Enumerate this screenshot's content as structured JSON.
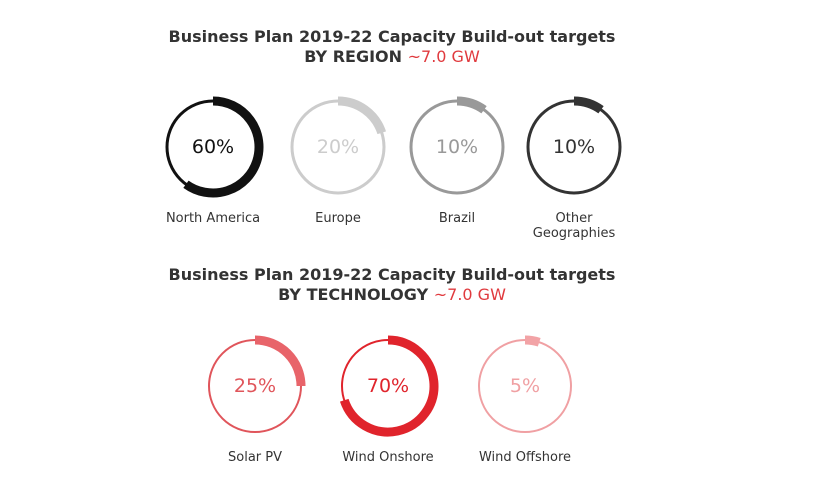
{
  "colors": {
    "background": "#ffffff",
    "accent": "#e03a3e",
    "title": "#333333"
  },
  "chart_data": [
    {
      "type": "pie",
      "title": "Business Plan 2019-22 Capacity Build-out targets",
      "subtitle": "BY REGION",
      "total": "~7.0 GW",
      "categories": [
        "North America",
        "Europe",
        "Brazil",
        "Other Geographies"
      ],
      "values": [
        60,
        20,
        10,
        10
      ],
      "value_labels": [
        "60%",
        "20%",
        "10%",
        "10%"
      ],
      "colors": [
        "#111111",
        "#cccccc",
        "#999999",
        "#333333"
      ],
      "ring_colors": [
        "#111111",
        "#cccccc",
        "#999999",
        "#333333"
      ],
      "text_colors": [
        "#111111",
        "#cccccc",
        "#999999",
        "#333333"
      ]
    },
    {
      "type": "pie",
      "title": "Business Plan 2019-22 Capacity Build-out targets",
      "subtitle": "BY TECHNOLOGY",
      "total": "~7.0 GW",
      "categories": [
        "Solar PV",
        "Wind Onshore",
        "Wind Offshore"
      ],
      "values": [
        25,
        70,
        5
      ],
      "value_labels": [
        "25%",
        "70%",
        "5%"
      ],
      "colors": [
        "#e8646a",
        "#e0242c",
        "#f2a3a6"
      ],
      "ring_colors": [
        "#e0555b",
        "#e0242c",
        "#f0a0a3"
      ],
      "text_colors": [
        "#e0555b",
        "#e0242c",
        "#f0a0a3"
      ]
    }
  ]
}
